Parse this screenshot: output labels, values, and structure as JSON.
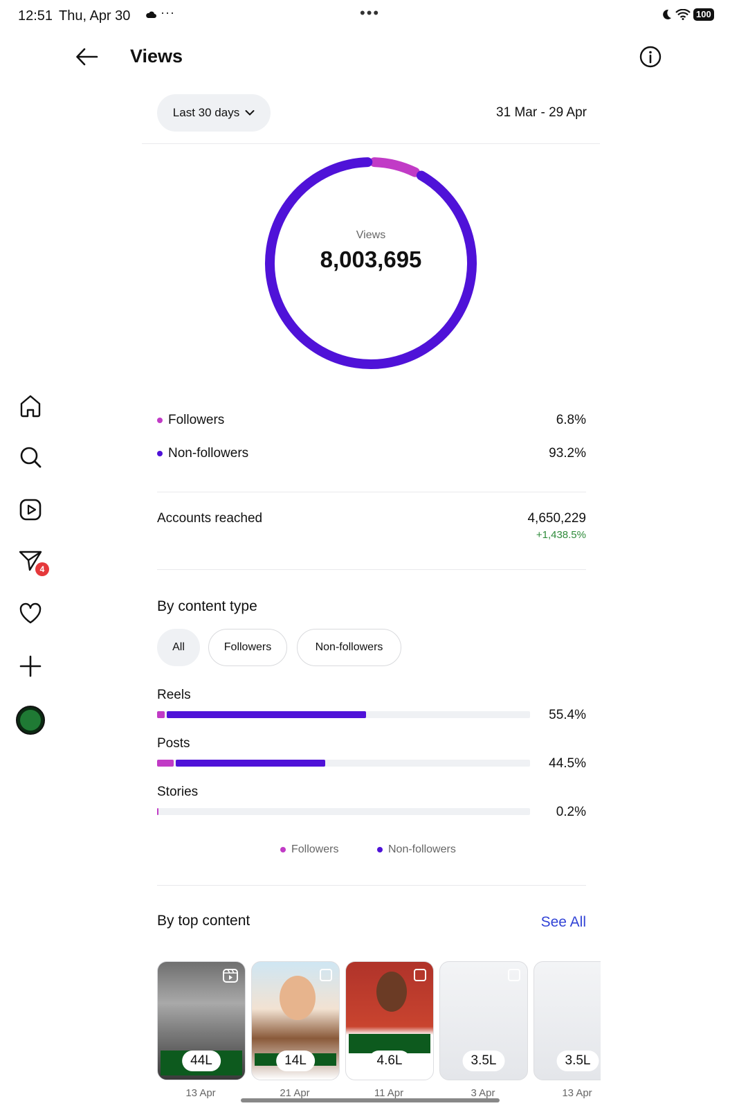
{
  "status_bar": {
    "time": "12:51",
    "date": "Thu, Apr 30",
    "more": "···",
    "center_dots": "•••",
    "battery": "100"
  },
  "header": {
    "title": "Views"
  },
  "filter": {
    "range_label": "Last 30 days",
    "date_range": "31 Mar - 29 Apr"
  },
  "summary": {
    "ring_label": "Views",
    "total": "8,003,695",
    "followers_share": 0.068,
    "nonfollowers_share": 0.932
  },
  "breakdown": [
    {
      "label": "Followers",
      "value": "6.8%"
    },
    {
      "label": "Non-followers",
      "value": "93.2%"
    }
  ],
  "accounts": {
    "label": "Accounts reached",
    "value": "4,650,229",
    "change": "+1,438.5%"
  },
  "content_type": {
    "title": "By content type",
    "chips": [
      "All",
      "Followers",
      "Non-followers"
    ],
    "rows": [
      {
        "label": "Reels",
        "pct": "55.4%",
        "followers_fraction": 0.02,
        "nonfollowers_fraction": 0.534
      },
      {
        "label": "Posts",
        "pct": "44.5%",
        "followers_fraction": 0.045,
        "nonfollowers_fraction": 0.4
      },
      {
        "label": "Stories",
        "pct": "0.2%",
        "followers_fraction": 0.002,
        "nonfollowers_fraction": 0.0
      }
    ],
    "legend": [
      "Followers",
      "Non-followers"
    ]
  },
  "top_content": {
    "title": "By top content",
    "see_all": "See All",
    "items": [
      {
        "value": "44L",
        "date": "13 Apr",
        "type": "reel-icon"
      },
      {
        "value": "14L",
        "date": "21 Apr",
        "type": "carousel-icon"
      },
      {
        "value": "4.6L",
        "date": "11 Apr",
        "type": "carousel-icon"
      },
      {
        "value": "3.5L",
        "date": "3 Apr",
        "type": "carousel-icon"
      },
      {
        "value": "3.5L",
        "date": "13 Apr",
        "type": "carousel-icon"
      }
    ]
  },
  "rail": {
    "messages_badge": "4"
  },
  "colors": {
    "followers": "#c13bc6",
    "nonfollowers": "#4f12d8",
    "track": "#eff1f4",
    "positive": "#2e8b3a",
    "link": "#3143d6"
  }
}
